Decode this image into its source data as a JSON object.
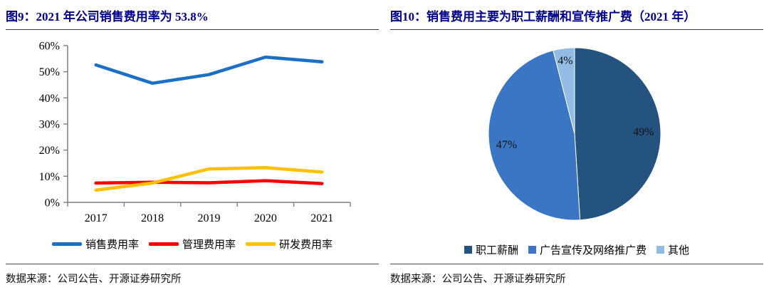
{
  "figure9": {
    "title": "图9：2021 年公司销售费用率为 53.8%",
    "source": "数据来源：公司公告、开源证券研究所"
  },
  "figure10": {
    "title": "图10：销售费用主要为职工薪酬和宣传推广费（2021 年）",
    "source": "数据来源：公司公告、开源证券研究所"
  },
  "colors": {
    "title_navy": "#00008B",
    "axis_gray": "#7f7f7f",
    "line_blue": "#1A6FC7",
    "line_red": "#FE0000",
    "line_yellow": "#FFC000",
    "pie_dark_blue": "#245380",
    "pie_mid_blue": "#3B76C4",
    "pie_light_blue": "#92BCE4"
  },
  "chart_data": [
    {
      "type": "line",
      "title": "2021 年公司销售费用率为 53.8%",
      "categories": [
        "2017",
        "2018",
        "2019",
        "2020",
        "2021"
      ],
      "series": [
        {
          "name": "销售费用率",
          "color": "#1A6FC7",
          "values": [
            52.6,
            45.6,
            48.9,
            55.6,
            53.8
          ]
        },
        {
          "name": "管理费用率",
          "color": "#FE0000",
          "values": [
            7.4,
            7.7,
            7.5,
            8.3,
            7.2
          ]
        },
        {
          "name": "研发费用率",
          "color": "#FFC000",
          "values": [
            4.7,
            7.4,
            12.8,
            13.3,
            11.6
          ]
        }
      ],
      "ylim": [
        0,
        60
      ],
      "ytick_step": 10,
      "ytick_labels": [
        "0%",
        "10%",
        "20%",
        "30%",
        "40%",
        "50%",
        "60%"
      ],
      "grid": false,
      "legend_position": "bottom"
    },
    {
      "type": "pie",
      "title": "销售费用主要为职工薪酬和宣传推广费（2021 年）",
      "slices": [
        {
          "label": "职工薪酬",
          "value": 49,
          "display": "49%",
          "color": "#245380"
        },
        {
          "label": "广告宣传及网络推广费",
          "value": 47,
          "display": "47%",
          "color": "#3B76C4"
        },
        {
          "label": "其他",
          "value": 4,
          "display": "4%",
          "color": "#92BCE4"
        }
      ],
      "start_angle_deg": 0,
      "direction": "clockwise",
      "legend_position": "bottom"
    }
  ]
}
